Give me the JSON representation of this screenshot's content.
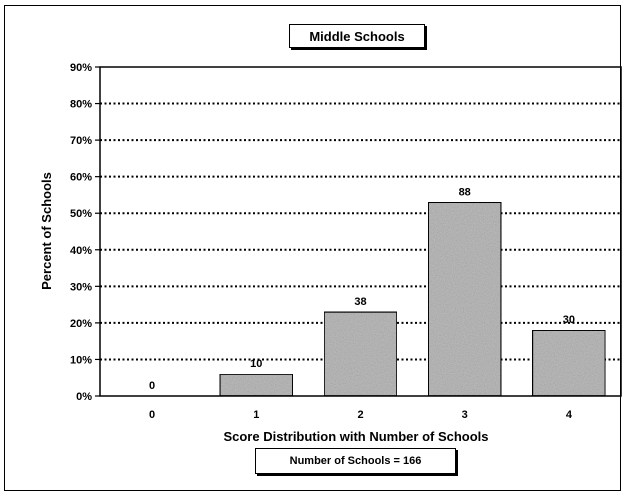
{
  "chart_data": {
    "type": "bar",
    "title": "Middle Schools",
    "xlabel": "Score Distribution with Number of Schools",
    "ylabel": "Percent of Schools",
    "categories": [
      "0",
      "1",
      "2",
      "3",
      "4"
    ],
    "values": [
      0,
      6,
      23,
      53,
      18
    ],
    "value_unit": "percent",
    "data_labels": [
      "0",
      "10",
      "38",
      "88",
      "30"
    ],
    "ylim": [
      0,
      90
    ],
    "y_ticks": [
      0,
      10,
      20,
      30,
      40,
      50,
      60,
      70,
      80,
      90
    ],
    "y_tick_labels": [
      "0%",
      "10%",
      "20%",
      "30%",
      "40%",
      "50%",
      "60%",
      "70%",
      "80%",
      "90%"
    ],
    "grid": "horizontal-dotted",
    "bar_fill": "#bdbdbd",
    "note": "Number of Schools = 166"
  }
}
